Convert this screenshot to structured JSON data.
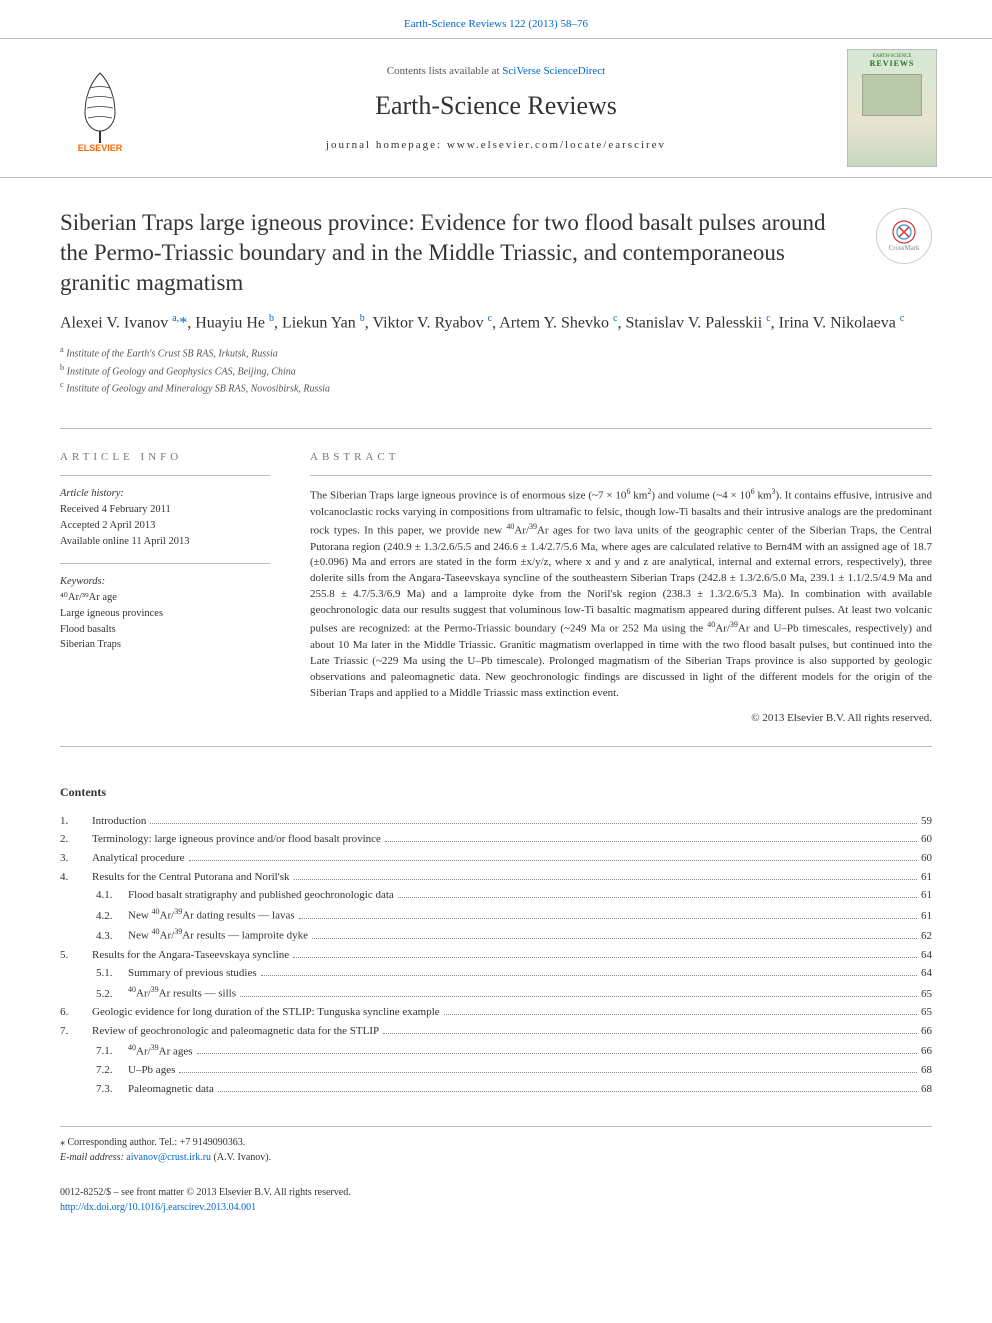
{
  "header": {
    "citation_link": "Earth-Science Reviews 122 (2013) 58–76",
    "contents_prefix": "Contents lists available at ",
    "contents_link": "SciVerse ScienceDirect",
    "journal_name": "Earth-Science Reviews",
    "homepage_prefix": "journal homepage: ",
    "homepage_url": "www.elsevier.com/locate/earscirev",
    "cover_top": "EARTH-SCIENCE",
    "cover_main": "REVIEWS"
  },
  "article": {
    "title": "Siberian Traps large igneous province: Evidence for two flood basalt pulses around the Permo-Triassic boundary and in the Middle Triassic, and contemporaneous granitic magmatism",
    "crossmark_label": "CrossMark",
    "authors_html": "Alexei V. Ivanov <sup>a,</sup><span class='ast'>*</span>, Huayiu He <sup>b</sup>, Liekun Yan <sup>b</sup>, Viktor V. Ryabov <sup>c</sup>, Artem Y. Shevko <sup>c</sup>, Stanislav V. Palesskii <sup>c</sup>, Irina V. Nikolaeva <sup>c</sup>",
    "affiliations": [
      {
        "sup": "a",
        "text": "Institute of the Earth's Crust SB RAS, Irkutsk, Russia"
      },
      {
        "sup": "b",
        "text": "Institute of Geology and Geophysics CAS, Beijing, China"
      },
      {
        "sup": "c",
        "text": "Institute of Geology and Mineralogy SB RAS, Novosibirsk, Russia"
      }
    ]
  },
  "info": {
    "label": "article info",
    "history_heading": "Article history:",
    "history": [
      "Received 4 February 2011",
      "Accepted 2 April 2013",
      "Available online 11 April 2013"
    ],
    "keywords_heading": "Keywords:",
    "keywords": [
      "⁴⁰Ar/³⁹Ar age",
      "Large igneous provinces",
      "Flood basalts",
      "Siberian Traps"
    ]
  },
  "abstract": {
    "label": "abstract",
    "text_html": "The Siberian Traps large igneous province is of enormous size (~7 × 10<sup>6</sup> km<sup>2</sup>) and volume (~4 × 10<sup>6</sup> km<sup>3</sup>). It contains effusive, intrusive and volcanoclastic rocks varying in compositions from ultramafic to felsic, though low-Ti basalts and their intrusive analogs are the predominant rock types. In this paper, we provide new <sup>40</sup>Ar/<sup>39</sup>Ar ages for two lava units of the geographic center of the Siberian Traps, the Central Putorana region (240.9 ± 1.3/2.6/5.5 and 246.6 ± 1.4/2.7/5.6 Ma, where ages are calculated relative to Bern4M with an assigned age of 18.7 (±0.096) Ma and errors are stated in the form ±x/y/z, where x and y and z are analytical, internal and external errors, respectively), three dolerite sills from the Angara-Taseevskaya syncline of the southeastern Siberian Traps (242.8 ± 1.3/2.6/5.0 Ma, 239.1 ± 1.1/2.5/4.9 Ma and 255.8 ± 4.7/5.3/6.9 Ma) and a lamproite dyke from the Noril'sk region (238.3 ± 1.3/2.6/5.3 Ma). In combination with available geochronologic data our results suggest that voluminous low-Ti basaltic magmatism appeared during different pulses. At least two volcanic pulses are recognized: at the Permo-Triassic boundary (~249 Ma or 252 Ma using the <sup>40</sup>Ar/<sup>39</sup>Ar and U–Pb timescales, respectively) and about 10 Ma later in the Middle Triassic. Granitic magmatism overlapped in time with the two flood basalt pulses, but continued into the Late Triassic (~229 Ma using the U–Pb timescale). Prolonged magmatism of the Siberian Traps province is also supported by geologic observations and paleomagnetic data. New geochronologic findings are discussed in light of the different models for the origin of the Siberian Traps and applied to a Middle Triassic mass extinction event.",
    "copyright": "© 2013 Elsevier B.V. All rights reserved."
  },
  "contents": {
    "heading": "Contents",
    "items": [
      {
        "num": "1.",
        "title": "Introduction",
        "page": "59"
      },
      {
        "num": "2.",
        "title": "Terminology: large igneous province and/or flood basalt province",
        "page": "60"
      },
      {
        "num": "3.",
        "title": "Analytical procedure",
        "page": "60"
      },
      {
        "num": "4.",
        "title": "Results for the Central Putorana and Noril'sk",
        "page": "61",
        "subs": [
          {
            "num": "4.1.",
            "title": "Flood basalt stratigraphy and published geochronologic data",
            "page": "61"
          },
          {
            "num": "4.2.",
            "title_html": "New <sup>40</sup>Ar/<sup>39</sup>Ar dating results — lavas",
            "page": "61"
          },
          {
            "num": "4.3.",
            "title_html": "New <sup>40</sup>Ar/<sup>39</sup>Ar results — lamproite dyke",
            "page": "62"
          }
        ]
      },
      {
        "num": "5.",
        "title": "Results for the Angara-Taseevskaya syncline",
        "page": "64",
        "subs": [
          {
            "num": "5.1.",
            "title": "Summary of previous studies",
            "page": "64"
          },
          {
            "num": "5.2.",
            "title_html": "<sup>40</sup>Ar/<sup>39</sup>Ar results — sills",
            "page": "65"
          }
        ]
      },
      {
        "num": "6.",
        "title": "Geologic evidence for long duration of the STLIP: Tunguska syncline example",
        "page": "65"
      },
      {
        "num": "7.",
        "title": "Review of geochronologic and paleomagnetic data for the STLIP",
        "page": "66",
        "subs": [
          {
            "num": "7.1.",
            "title_html": "<sup>40</sup>Ar/<sup>39</sup>Ar ages",
            "page": "66"
          },
          {
            "num": "7.2.",
            "title": "U–Pb ages",
            "page": "68"
          },
          {
            "num": "7.3.",
            "title": "Paleomagnetic data",
            "page": "68"
          }
        ]
      }
    ]
  },
  "footer": {
    "corr_label": "⁎ Corresponding author. Tel.: +7 9149090363.",
    "email_label": "E-mail address:",
    "email": "aivanov@crust.irk.ru",
    "email_suffix": "(A.V. Ivanov).",
    "issn_line": "0012-8252/$ – see front matter © 2013 Elsevier B.V. All rights reserved.",
    "doi": "http://dx.doi.org/10.1016/j.earscirev.2013.04.001"
  },
  "colors": {
    "link": "#0066cc",
    "text": "#333333",
    "muted": "#777777",
    "border": "#bbbbbb",
    "elsevier_orange": "#ff6600",
    "elsevier_dark": "#333333"
  }
}
